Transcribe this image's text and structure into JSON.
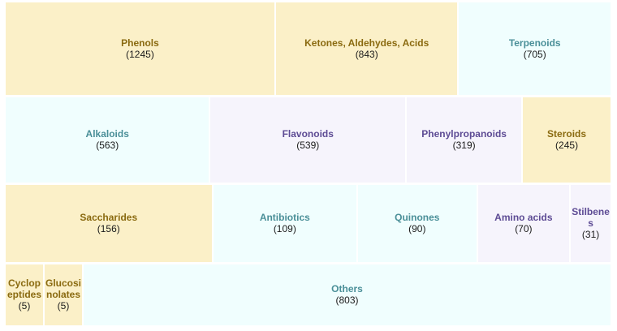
{
  "chart_data": {
    "type": "treemap",
    "items": [
      {
        "name": "Phenols",
        "value": 1245,
        "color": "yellow"
      },
      {
        "name": "Ketones, Aldehydes, Acids",
        "value": 843,
        "color": "yellow"
      },
      {
        "name": "Terpenoids",
        "value": 705,
        "color": "cyan"
      },
      {
        "name": "Alkaloids",
        "value": 563,
        "color": "cyan"
      },
      {
        "name": "Flavonoids",
        "value": 539,
        "color": "lavender"
      },
      {
        "name": "Phenylpropanoids",
        "value": 319,
        "color": "lavender"
      },
      {
        "name": "Steroids",
        "value": 245,
        "color": "yellow"
      },
      {
        "name": "Saccharides",
        "value": 156,
        "color": "yellow"
      },
      {
        "name": "Antibiotics",
        "value": 109,
        "color": "cyan"
      },
      {
        "name": "Quinones",
        "value": 90,
        "color": "cyan"
      },
      {
        "name": "Amino acids",
        "value": 70,
        "color": "lavender"
      },
      {
        "name": "Stilbenes",
        "value": 31,
        "color": "lavender"
      },
      {
        "name": "Cyclopeptides",
        "value": 5,
        "color": "yellow"
      },
      {
        "name": "Glucosinolates",
        "value": 5,
        "color": "yellow"
      },
      {
        "name": "Others",
        "value": 803,
        "color": "cyan"
      }
    ]
  },
  "colors": {
    "yellow": "#fbf0c8",
    "cyan": "#f0fefe",
    "lavender": "#f6f4fc"
  }
}
